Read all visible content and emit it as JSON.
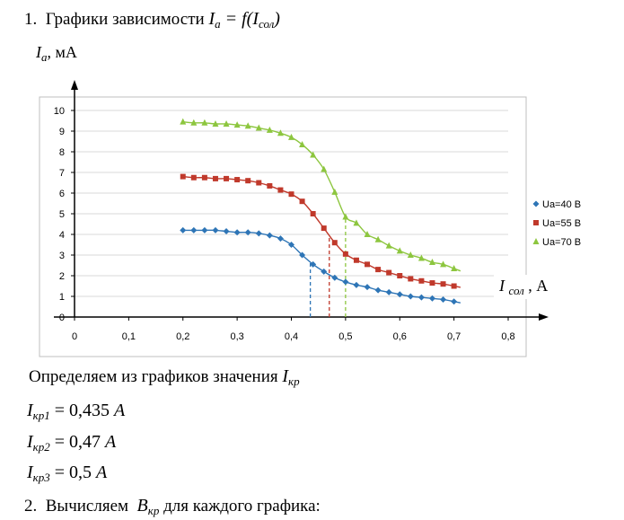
{
  "heading1": {
    "number": "1.",
    "text": "Графики зависимости",
    "formula_main": "I",
    "formula_sub": "a",
    "formula_rest": " = f(",
    "formula_main2": "I",
    "formula_sub2": "сол",
    "formula_end": ")"
  },
  "y_axis_title": {
    "main": "I",
    "sub": "a",
    "unit": ", мА"
  },
  "x_axis_title": {
    "main": "I",
    "sub": "сол",
    "unit": ", А"
  },
  "chart_data": {
    "type": "scatter",
    "xlim": [
      0,
      0.8
    ],
    "ylim": [
      0,
      10
    ],
    "x_ticks": [
      "0",
      "0,1",
      "0,2",
      "0,3",
      "0,4",
      "0,5",
      "0,6",
      "0,7",
      "0,8"
    ],
    "y_ticks": [
      "0",
      "1",
      "2",
      "3",
      "4",
      "5",
      "6",
      "7",
      "8",
      "9",
      "10"
    ],
    "legend_position": "right",
    "grid": "horizontal",
    "series": [
      {
        "name": "Ua=40 В",
        "color": "#2E75B6",
        "marker": "diamond",
        "x": [
          0.2,
          0.22,
          0.24,
          0.26,
          0.28,
          0.3,
          0.32,
          0.34,
          0.36,
          0.38,
          0.4,
          0.42,
          0.44,
          0.46,
          0.48,
          0.5,
          0.52,
          0.54,
          0.56,
          0.58,
          0.6,
          0.62,
          0.64,
          0.66,
          0.68,
          0.7
        ],
        "y": [
          4.2,
          4.2,
          4.2,
          4.2,
          4.15,
          4.1,
          4.1,
          4.05,
          3.95,
          3.8,
          3.5,
          3.0,
          2.55,
          2.2,
          1.9,
          1.7,
          1.55,
          1.45,
          1.3,
          1.2,
          1.1,
          1.0,
          0.95,
          0.9,
          0.85,
          0.75
        ]
      },
      {
        "name": "Ua=55 В",
        "color": "#C0392B",
        "marker": "square",
        "x": [
          0.2,
          0.22,
          0.24,
          0.26,
          0.28,
          0.3,
          0.32,
          0.34,
          0.36,
          0.38,
          0.4,
          0.42,
          0.44,
          0.46,
          0.48,
          0.5,
          0.52,
          0.54,
          0.56,
          0.58,
          0.6,
          0.62,
          0.64,
          0.66,
          0.68,
          0.7
        ],
        "y": [
          6.8,
          6.75,
          6.75,
          6.7,
          6.7,
          6.65,
          6.6,
          6.5,
          6.35,
          6.15,
          5.95,
          5.6,
          5.0,
          4.3,
          3.6,
          3.05,
          2.75,
          2.55,
          2.3,
          2.15,
          2.0,
          1.85,
          1.75,
          1.65,
          1.6,
          1.5
        ]
      },
      {
        "name": "Ua=70 В",
        "color": "#8DC63F",
        "marker": "triangle",
        "x": [
          0.2,
          0.22,
          0.24,
          0.26,
          0.28,
          0.3,
          0.32,
          0.34,
          0.36,
          0.38,
          0.4,
          0.42,
          0.44,
          0.46,
          0.48,
          0.5,
          0.52,
          0.54,
          0.56,
          0.58,
          0.6,
          0.62,
          0.64,
          0.66,
          0.68,
          0.7
        ],
        "y": [
          9.45,
          9.4,
          9.4,
          9.35,
          9.35,
          9.3,
          9.25,
          9.15,
          9.05,
          8.9,
          8.7,
          8.35,
          7.85,
          7.15,
          6.05,
          4.85,
          4.55,
          4.0,
          3.75,
          3.45,
          3.2,
          3.0,
          2.85,
          2.65,
          2.55,
          2.35
        ]
      }
    ],
    "critical_lines": [
      {
        "x": 0.435,
        "color": "#2E75B6"
      },
      {
        "x": 0.47,
        "color": "#C0392B"
      },
      {
        "x": 0.5,
        "color": "#8DC63F"
      }
    ]
  },
  "para1": {
    "text": "Определяем из графиков значения",
    "main": "I",
    "sub": "кр"
  },
  "formulas": [
    {
      "main": "I",
      "sub": "кр1",
      "value": " = 0,435",
      "unit": " A"
    },
    {
      "main": "I",
      "sub": "кр2",
      "value": " = 0,47",
      "unit": " A"
    },
    {
      "main": "I",
      "sub": "кр3",
      "value": " = 0,5",
      "unit": " A"
    }
  ],
  "heading2": {
    "number": "2.",
    "text1": "Вычисляем",
    "main": "B",
    "sub": "кр",
    "text2": "для каждого графика:"
  }
}
